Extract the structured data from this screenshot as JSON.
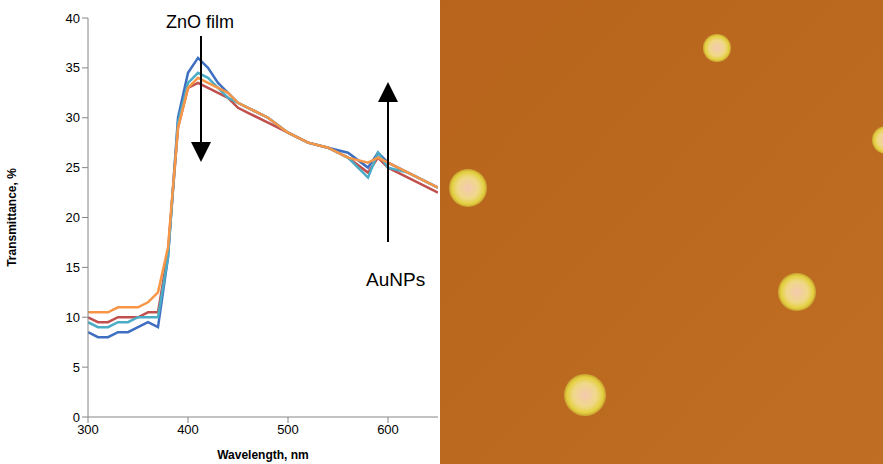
{
  "chart_data": {
    "type": "line",
    "xlabel": "Wavelength, nm",
    "ylabel": "Transmittance, %",
    "annotations": [
      "ZnO film",
      "AuNPs"
    ],
    "x": [
      300,
      310,
      320,
      330,
      340,
      350,
      360,
      370,
      380,
      390,
      400,
      410,
      420,
      430,
      440,
      450,
      460,
      480,
      500,
      520,
      540,
      560,
      580,
      590,
      600,
      620,
      640,
      650
    ],
    "series": [
      {
        "color": "#3f6fc0",
        "values": [
          8.5,
          8,
          8,
          8.5,
          8.5,
          9,
          9.5,
          9,
          16,
          30,
          34.5,
          36,
          35,
          33.5,
          32.5,
          31.5,
          31,
          30,
          28.5,
          27.5,
          27,
          26.5,
          25,
          26.5,
          25.5,
          24.5,
          23.5,
          23
        ]
      },
      {
        "color": "#c0504d",
        "values": [
          10,
          9.5,
          9.5,
          10,
          10,
          10,
          10.5,
          10.5,
          16.5,
          29,
          33,
          33.5,
          33,
          32.5,
          32,
          31,
          30.5,
          29.5,
          28.5,
          27.5,
          27,
          26,
          24.5,
          26,
          25,
          24,
          23,
          22.5
        ]
      },
      {
        "color": "#4bacc6",
        "values": [
          9.5,
          9,
          9,
          9.5,
          9.5,
          10,
          10,
          10,
          16,
          29.5,
          33.5,
          34.5,
          34,
          33,
          32,
          31.5,
          31,
          30,
          28.5,
          27.5,
          27,
          26,
          24,
          26.5,
          25,
          24.5,
          23.5,
          23
        ]
      },
      {
        "color": "#f79646",
        "values": [
          10.5,
          10.5,
          10.5,
          11,
          11,
          11,
          11.5,
          12.5,
          17,
          29,
          33,
          34,
          33.5,
          33,
          32.5,
          31.5,
          31,
          30,
          28.5,
          27.5,
          27,
          26,
          25.5,
          26,
          25.5,
          24.5,
          23.5,
          23
        ]
      }
    ],
    "xlim": [
      300,
      650
    ],
    "ylim": [
      0,
      40
    ],
    "xticks": [
      300,
      400,
      500,
      600
    ],
    "yticks": [
      0,
      5,
      10,
      15,
      20,
      25,
      30,
      35,
      40
    ],
    "grid": false
  }
}
